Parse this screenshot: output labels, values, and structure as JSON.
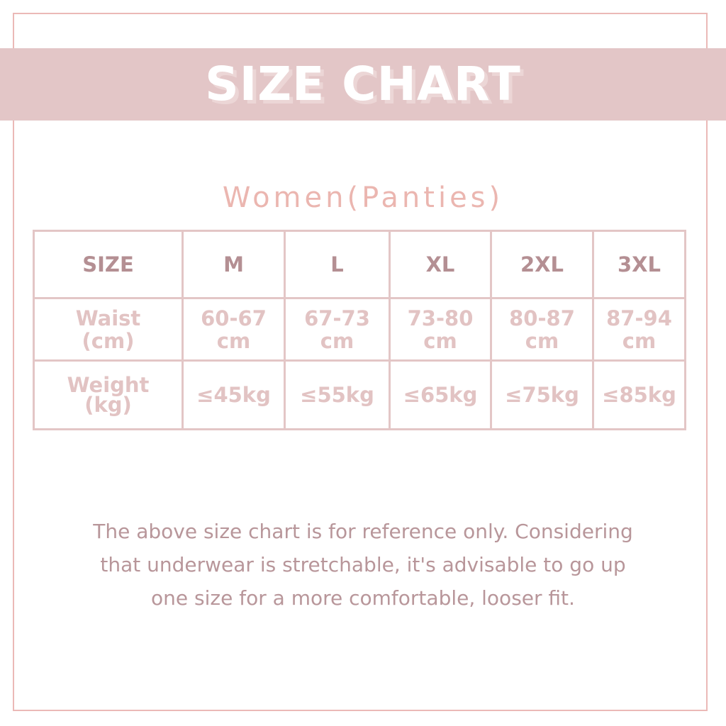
{
  "title": "SIZE CHART",
  "subtitle": "Women(Panties)",
  "table": {
    "header": [
      "SIZE",
      "M",
      "L",
      "XL",
      "2XL",
      "3XL"
    ],
    "waist": {
      "label": [
        "Waist",
        "(cm)"
      ],
      "values": [
        [
          "60-67",
          "cm"
        ],
        [
          "67-73",
          "cm"
        ],
        [
          "73-80",
          "cm"
        ],
        [
          "80-87",
          "cm"
        ],
        [
          "87-94",
          "cm"
        ]
      ]
    },
    "weight": {
      "label": [
        "Weight",
        "(kg)"
      ],
      "values": [
        "≤45kg",
        "≤55kg",
        "≤65kg",
        "≤75kg",
        "≤85kg"
      ]
    }
  },
  "note": [
    "The above size chart is for reference only. Considering",
    "that underwear is stretchable, it's advisable to go up",
    "one size for a more comfortable, looser fit."
  ],
  "colors": {
    "banner": "#e3c6c7",
    "border": "#e3c6c6",
    "header_text": "#b48f93",
    "cell_text": "#e2c3c3",
    "frame": "#ebb9b7"
  }
}
